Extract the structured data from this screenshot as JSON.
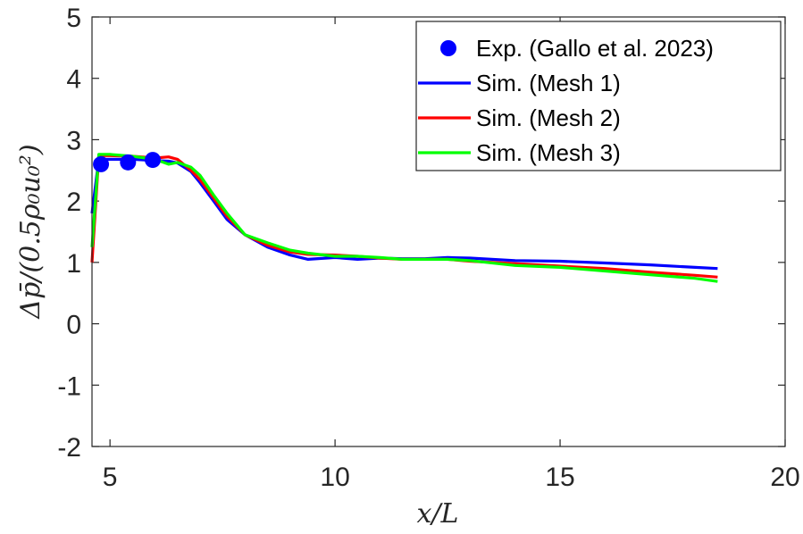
{
  "chart_data": {
    "type": "line",
    "xlabel": "x/L",
    "ylabel": "Δp̄/(0.5ρ₀u₀²)",
    "xlim": [
      4.6,
      20
    ],
    "ylim": [
      -2,
      5
    ],
    "xticks": [
      5,
      10,
      15,
      20
    ],
    "yticks": [
      -2,
      -1,
      0,
      1,
      2,
      3,
      4,
      5
    ],
    "grid": false,
    "legend_position": "top-right",
    "series": [
      {
        "name": "Exp. (Gallo et al. 2023)",
        "kind": "scatter",
        "color": "#0000ff",
        "x": [
          4.8,
          5.4,
          5.95
        ],
        "y": [
          2.6,
          2.63,
          2.67
        ]
      },
      {
        "name": "Sim. (Mesh 1)",
        "kind": "line",
        "color": "#0000ff",
        "x": [
          4.6,
          4.75,
          5.0,
          5.5,
          6.0,
          6.3,
          6.5,
          6.8,
          7.0,
          7.3,
          7.6,
          8.0,
          8.5,
          9.0,
          9.4,
          10.0,
          10.5,
          11.0,
          11.5,
          12.0,
          12.5,
          13.0,
          14.0,
          15.0,
          16.0,
          17.0,
          18.0,
          18.5
        ],
        "y": [
          1.8,
          2.68,
          2.68,
          2.68,
          2.66,
          2.65,
          2.62,
          2.48,
          2.3,
          2.0,
          1.7,
          1.45,
          1.25,
          1.12,
          1.05,
          1.08,
          1.05,
          1.07,
          1.06,
          1.06,
          1.08,
          1.07,
          1.03,
          1.02,
          0.99,
          0.96,
          0.92,
          0.9
        ]
      },
      {
        "name": "Sim. (Mesh 2)",
        "kind": "line",
        "color": "#ff0000",
        "x": [
          4.6,
          4.75,
          5.0,
          5.5,
          6.0,
          6.3,
          6.5,
          6.8,
          7.0,
          7.3,
          7.6,
          8.0,
          8.5,
          9.0,
          9.4,
          10.0,
          10.5,
          11.0,
          11.5,
          12.0,
          12.5,
          13.0,
          14.0,
          15.0,
          16.0,
          17.0,
          18.0,
          18.5
        ],
        "y": [
          1.0,
          2.74,
          2.74,
          2.73,
          2.7,
          2.72,
          2.68,
          2.5,
          2.35,
          2.05,
          1.75,
          1.45,
          1.28,
          1.17,
          1.13,
          1.12,
          1.1,
          1.07,
          1.05,
          1.05,
          1.05,
          1.02,
          0.98,
          0.94,
          0.9,
          0.84,
          0.79,
          0.76
        ]
      },
      {
        "name": "Sim. (Mesh 3)",
        "kind": "line",
        "color": "#00ff00",
        "x": [
          4.6,
          4.75,
          5.0,
          5.5,
          6.0,
          6.3,
          6.5,
          6.8,
          7.0,
          7.3,
          7.6,
          8.0,
          8.5,
          9.0,
          9.4,
          10.0,
          10.5,
          11.0,
          11.5,
          12.0,
          12.5,
          13.0,
          14.0,
          15.0,
          16.0,
          17.0,
          18.0,
          18.5
        ],
        "y": [
          1.25,
          2.76,
          2.76,
          2.73,
          2.68,
          2.6,
          2.63,
          2.55,
          2.42,
          2.1,
          1.8,
          1.45,
          1.32,
          1.2,
          1.15,
          1.1,
          1.1,
          1.08,
          1.05,
          1.05,
          1.05,
          1.03,
          0.95,
          0.92,
          0.86,
          0.8,
          0.74,
          0.69
        ]
      }
    ]
  }
}
